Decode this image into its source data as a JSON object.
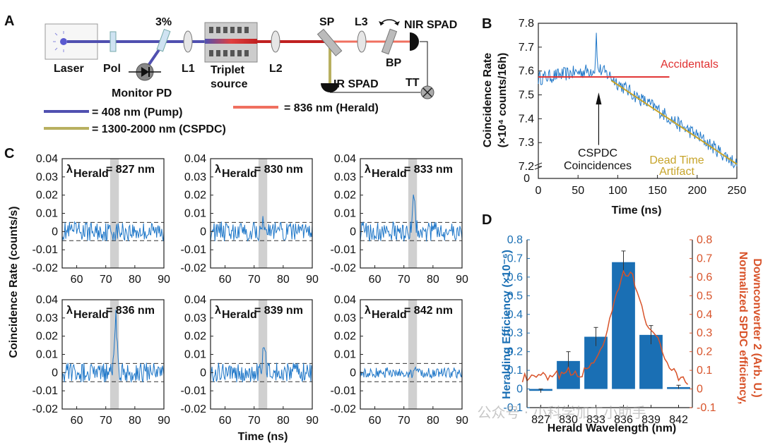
{
  "colors": {
    "pump": "#5050b0",
    "herald": "#f07060",
    "cspdc": "#b8b060",
    "trace": "#1f77c8",
    "accidentals": "#e03030",
    "deadtime": "#c7a42a",
    "bar": "#1a6fb4",
    "spdc": "#d8532a",
    "shade": "#d0d0d0"
  },
  "panel_a": {
    "letter": "A",
    "components": {
      "laser": "Laser",
      "pol": "Pol",
      "tap": "3%",
      "l1": "L1",
      "triplet_line1": "Triplet",
      "triplet_line2": "source",
      "l2": "L2",
      "sp": "SP",
      "l3": "L3",
      "bp": "BP",
      "nir_spad": "NIR SPAD",
      "ir_spad": "IR SPAD",
      "tt": "TT",
      "monitor_pd": "Monitor PD"
    },
    "legend": [
      {
        "label": "= 408 nm (Pump)",
        "color": "#5050b0"
      },
      {
        "label": "= 836 nm (Herald)",
        "color": "#f07060"
      },
      {
        "label": "= 1300-2000 nm (CSPDC)",
        "color": "#b8b060"
      }
    ]
  },
  "chart_data": [
    {
      "panel": "B",
      "type": "line",
      "xlabel": "Time (ns)",
      "ylabel_line1": "Coincidence Rate",
      "ylabel_line2": "(×10⁴ counts/16h)",
      "xlim": [
        0,
        250
      ],
      "ylim": [
        7.15,
        7.8
      ],
      "xticks": [
        0,
        50,
        100,
        150,
        200,
        250
      ],
      "yticks": [
        7.2,
        7.3,
        7.4,
        7.5,
        7.6,
        7.7,
        7.8
      ],
      "ytick_labels": [
        "7.2",
        "7.3",
        "7.4",
        "7.5",
        "7.6",
        "7.7",
        "7.8"
      ],
      "y_break_label": "0",
      "series": [
        {
          "name": "coincidence trace",
          "description": "noisy trace, flat ~7.57 until 90 ns then linear decrease to ~7.21 at 250 ns",
          "x": [
            0,
            20,
            40,
            60,
            75,
            90,
            100,
            125,
            150,
            175,
            200,
            225,
            250
          ],
          "values": [
            7.57,
            7.58,
            7.59,
            7.6,
            7.61,
            7.58,
            7.55,
            7.49,
            7.44,
            7.38,
            7.33,
            7.27,
            7.21
          ],
          "peak": {
            "x": 73,
            "y": 7.76
          }
        },
        {
          "name": "Accidentals",
          "x": [
            0,
            165
          ],
          "values": [
            7.575,
            7.575
          ]
        },
        {
          "name": "Dead Time Artifact",
          "x": [
            92,
            250
          ],
          "values": [
            7.56,
            7.21
          ]
        }
      ],
      "annotations": {
        "accidentals": "Accidentals",
        "cspdc_line1": "CSPDC",
        "cspdc_line2": "Coincidences",
        "dead_line1": "Dead Time",
        "dead_line2": "Artifact"
      }
    },
    {
      "panel": "C",
      "type": "line",
      "ylabel": "Coincidence Rate (counts/s)",
      "xlabel": "Time (ns)",
      "xlim": [
        55,
        90
      ],
      "ylim": [
        -0.02,
        0.04
      ],
      "xticks": [
        60,
        70,
        80,
        90
      ],
      "yticks": [
        -0.02,
        -0.01,
        0,
        0.01,
        0.02,
        0.03,
        0.04
      ],
      "ytick_labels": [
        "-0.02",
        "-0.01",
        "0",
        "0.01",
        "0.02",
        "0.03",
        "0.04"
      ],
      "shaded_window": [
        71.5,
        74.5
      ],
      "dashed_levels": [
        0.005,
        -0.005
      ],
      "series": [
        {
          "name": "λHerald = 827 nm",
          "lambda": "= 827 nm",
          "noise": 0.0045,
          "peak": 0.0
        },
        {
          "name": "λHerald = 830 nm",
          "lambda": "= 830 nm",
          "noise": 0.0045,
          "peak": 0.006
        },
        {
          "name": "λHerald = 833 nm",
          "lambda": "= 833 nm",
          "noise": 0.0045,
          "peak": 0.019
        },
        {
          "name": "λHerald = 836 nm",
          "lambda": "= 836 nm",
          "noise": 0.0045,
          "peak": 0.031
        },
        {
          "name": "λHerald = 839 nm",
          "lambda": "= 839 nm",
          "noise": 0.0045,
          "peak": 0.016
        },
        {
          "name": "λHerald = 842 nm",
          "lambda": "= 842 nm",
          "noise": 0.0025,
          "peak": 0.0
        }
      ]
    },
    {
      "panel": "D",
      "type": "bar",
      "xlabel": "Herald Wavelength (nm)",
      "ylabel_left": "Heralding Efficiency (×10⁻⁶)",
      "ylabel_right_line1": "Normalized SPDC efficiency,",
      "ylabel_right_line2": "Downconverter 2 (Arb. U.)",
      "categories": [
        "827",
        "830",
        "833",
        "836",
        "839",
        "842"
      ],
      "ylim": [
        -0.1,
        0.8
      ],
      "yticks": [
        -0.1,
        0,
        0.1,
        0.2,
        0.3,
        0.4,
        0.5,
        0.6,
        0.7,
        0.8
      ],
      "ytick_labels": [
        "-0.1",
        "0",
        "0.1",
        "0.2",
        "0.3",
        "0.4",
        "0.5",
        "0.6",
        "0.7",
        "0.8"
      ],
      "series": [
        {
          "name": "Heralding Efficiency",
          "values": [
            -0.01,
            0.15,
            0.28,
            0.68,
            0.29,
            0.01
          ],
          "errors": [
            0.01,
            0.05,
            0.05,
            0.06,
            0.05,
            0.01
          ]
        },
        {
          "name": "Normalized SPDC efficiency",
          "x": [
            825,
            826,
            827,
            828,
            829,
            830,
            831,
            832,
            833,
            834,
            835,
            836,
            837,
            838,
            839,
            840,
            841,
            842,
            843
          ],
          "values": [
            0.06,
            0.05,
            0.07,
            0.05,
            0.08,
            0.09,
            0.07,
            0.1,
            0.17,
            0.26,
            0.45,
            0.62,
            0.6,
            0.44,
            0.3,
            0.24,
            0.12,
            0.05,
            0.03
          ]
        }
      ]
    }
  ],
  "watermark": "公众号 · 小科学加工小助手"
}
